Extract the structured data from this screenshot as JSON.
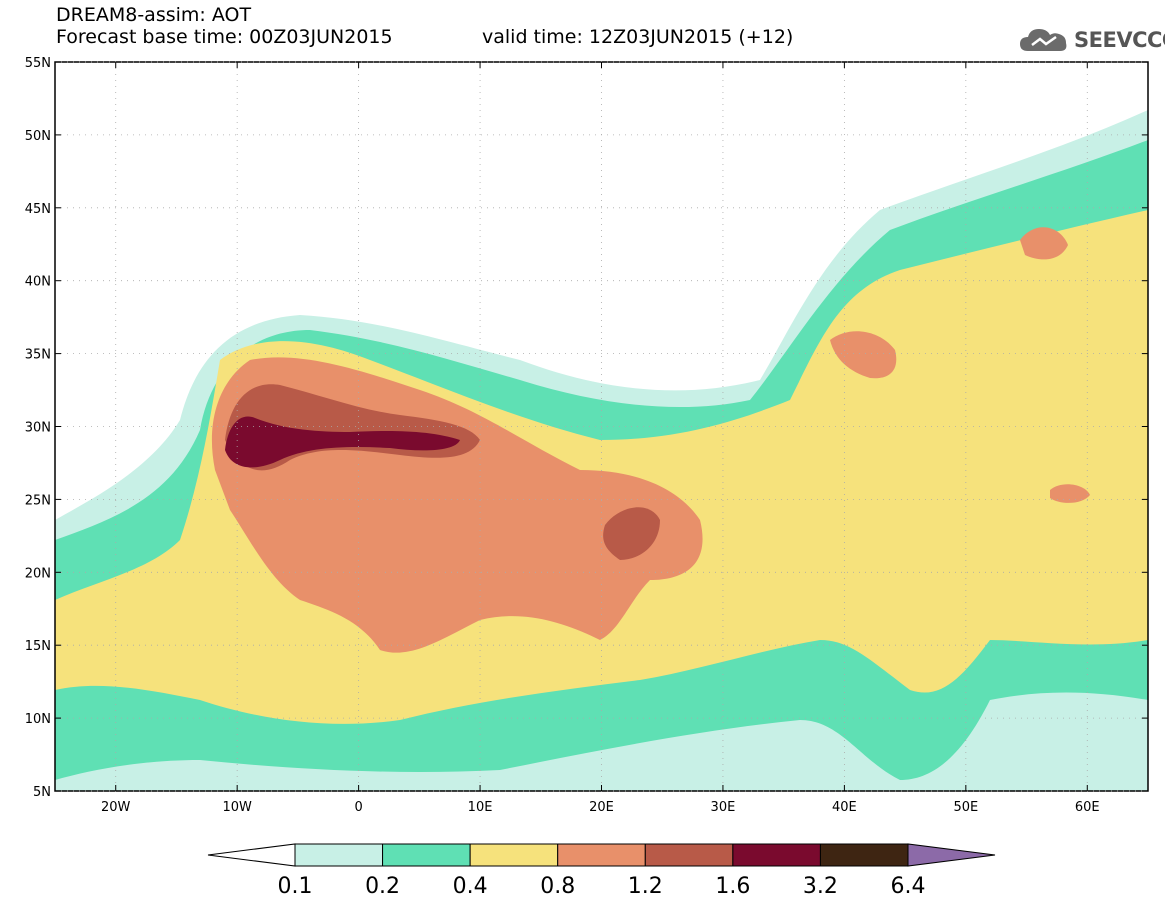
{
  "header": {
    "line1": "DREAM8-assim: AOT",
    "line2": "Forecast base time: 00Z03JUN2015",
    "valid": "valid time: 12Z03JUN2015 (+12)"
  },
  "logo": {
    "text": "SEEVCCC",
    "icon": "cloud-logo-icon"
  },
  "map": {
    "lat_range": [
      5,
      55
    ],
    "lon_range": [
      -25,
      65
    ],
    "lat_ticks": [
      "5N",
      "10N",
      "15N",
      "20N",
      "25N",
      "30N",
      "35N",
      "40N",
      "45N",
      "50N",
      "55N"
    ],
    "lon_ticks": [
      "20W",
      "10W",
      "0",
      "10E",
      "20E",
      "30E",
      "40E",
      "50E",
      "60E"
    ],
    "lat_tick_values": [
      5,
      10,
      15,
      20,
      25,
      30,
      35,
      40,
      45,
      50,
      55
    ],
    "lon_tick_values": [
      -20,
      -10,
      0,
      10,
      20,
      30,
      40,
      50,
      60
    ]
  },
  "colorbar": {
    "labels": [
      "0.1",
      "0.2",
      "0.4",
      "0.8",
      "1.2",
      "1.6",
      "3.2",
      "6.4"
    ],
    "colors": [
      "#ffffff",
      "#c8f0e6",
      "#5fe0b4",
      "#f6e27c",
      "#e8906a",
      "#b85a48",
      "#7a0a2e",
      "#3e2512",
      "#8c6aa8"
    ]
  }
}
